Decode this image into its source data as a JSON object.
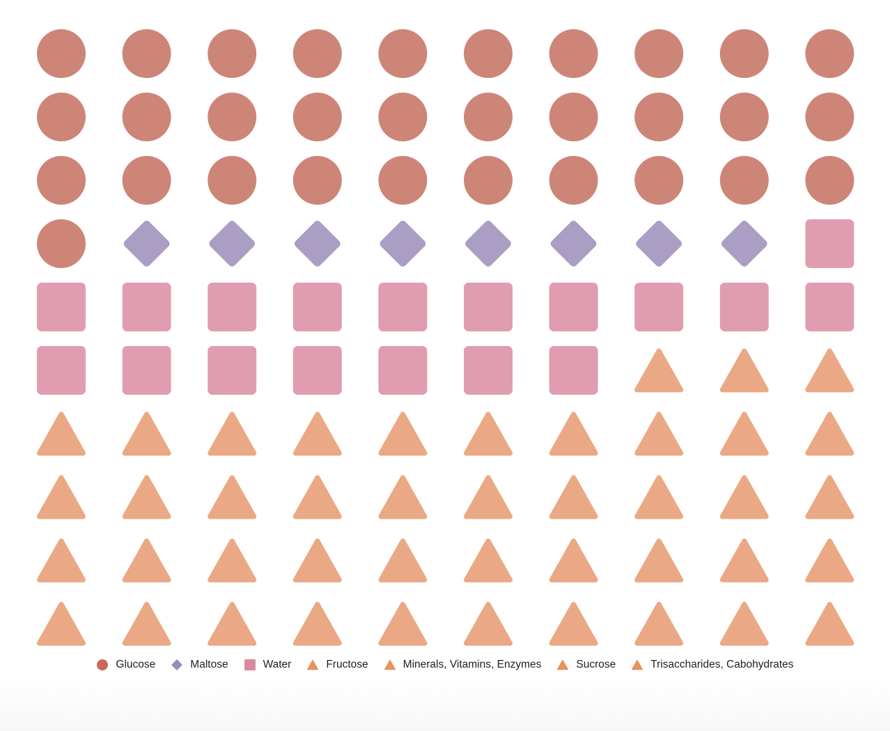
{
  "chart_data": {
    "type": "waffle",
    "grid": {
      "rows": 10,
      "columns": 10,
      "fill_order": "row-major"
    },
    "units_total": 100,
    "categories": [
      "Glucose",
      "Maltose",
      "Water",
      "Fructose",
      "Minerals, Vitamins, Enzymes",
      "Sucrose",
      "Trisaccharides, Cabohydrates"
    ],
    "series": [
      {
        "name": "Glucose",
        "value": 31,
        "shape": "circle",
        "color": "#cd8578"
      },
      {
        "name": "Maltose",
        "value": 8,
        "shape": "diamond",
        "color": "#aa9ec4"
      },
      {
        "name": "Water",
        "value": 18,
        "shape": "square",
        "color": "#e09db0"
      },
      {
        "name": "Fructose",
        "value": 43,
        "shape": "triangle",
        "color": "#eaa984"
      },
      {
        "name": "Minerals, Vitamins, Enzymes",
        "value": 0,
        "shape": "triangle",
        "color": "#eaa984"
      },
      {
        "name": "Sucrose",
        "value": 0,
        "shape": "triangle",
        "color": "#eaa984"
      },
      {
        "name": "Trisaccharides, Cabohydrates",
        "value": 0,
        "shape": "triangle",
        "color": "#eaa984"
      }
    ],
    "legend": {
      "position": "bottom",
      "swatch_colors": {
        "Glucose": "#c7695a",
        "Maltose": "#9b8bbd",
        "Water": "#d98aa0",
        "Fructose": "#e69360",
        "Minerals, Vitamins, Enzymes": "#e69360",
        "Sucrose": "#e69360",
        "Trisaccharides, Cabohydrates": "#e69360"
      }
    }
  }
}
